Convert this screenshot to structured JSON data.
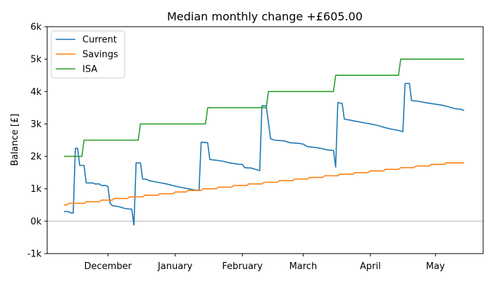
{
  "chart_data": {
    "type": "line",
    "title": "Median monthly change +£605.00",
    "xlabel": "",
    "ylabel": "Balance [£]",
    "ylim": [
      -1000,
      6000
    ],
    "yticks": [
      -1000,
      0,
      1000,
      2000,
      3000,
      4000,
      5000,
      6000
    ],
    "ytick_labels": [
      "-1k",
      "0k",
      "1k",
      "2k",
      "3k",
      "4k",
      "5k",
      "6k"
    ],
    "xlim": [
      "2022-11-03",
      "2023-05-23"
    ],
    "xticks": [
      "2022-12-01",
      "2023-01-01",
      "2023-02-01",
      "2023-03-01",
      "2023-04-01",
      "2023-05-01"
    ],
    "xtick_labels": [
      "December",
      "January",
      "February",
      "March",
      "April",
      "May"
    ],
    "grid": false,
    "zero_line": true,
    "legend": "top-left",
    "series": [
      {
        "name": "Current",
        "color": "#1f77b4",
        "points": [
          [
            "2022-11-11",
            300
          ],
          [
            "2022-11-13",
            290
          ],
          [
            "2022-11-14",
            250
          ],
          [
            "2022-11-15",
            250
          ],
          [
            "2022-11-16",
            2250
          ],
          [
            "2022-11-17",
            2250
          ],
          [
            "2022-11-18",
            1720
          ],
          [
            "2022-11-20",
            1720
          ],
          [
            "2022-11-21",
            1180
          ],
          [
            "2022-11-24",
            1180
          ],
          [
            "2022-11-25",
            1150
          ],
          [
            "2022-11-27",
            1150
          ],
          [
            "2022-11-28",
            1100
          ],
          [
            "2022-11-30",
            1100
          ],
          [
            "2022-12-01",
            1070
          ],
          [
            "2022-12-02",
            550
          ],
          [
            "2022-12-03",
            480
          ],
          [
            "2022-12-05",
            460
          ],
          [
            "2022-12-07",
            430
          ],
          [
            "2022-12-09",
            390
          ],
          [
            "2022-12-12",
            370
          ],
          [
            "2022-12-13",
            -120
          ],
          [
            "2022-12-14",
            1800
          ],
          [
            "2022-12-16",
            1800
          ],
          [
            "2022-12-17",
            1300
          ],
          [
            "2022-12-19",
            1290
          ],
          [
            "2022-12-20",
            1250
          ],
          [
            "2022-12-24",
            1200
          ],
          [
            "2022-12-28",
            1150
          ],
          [
            "2023-01-01",
            1080
          ],
          [
            "2023-01-04",
            1040
          ],
          [
            "2023-01-07",
            1000
          ],
          [
            "2023-01-10",
            960
          ],
          [
            "2023-01-12",
            950
          ],
          [
            "2023-01-13",
            2440
          ],
          [
            "2023-01-16",
            2420
          ],
          [
            "2023-01-17",
            1900
          ],
          [
            "2023-01-20",
            1880
          ],
          [
            "2023-01-23",
            1850
          ],
          [
            "2023-01-26",
            1800
          ],
          [
            "2023-01-30",
            1760
          ],
          [
            "2023-02-01",
            1750
          ],
          [
            "2023-02-02",
            1650
          ],
          [
            "2023-02-05",
            1640
          ],
          [
            "2023-02-07",
            1600
          ],
          [
            "2023-02-09",
            1560
          ],
          [
            "2023-02-10",
            3560
          ],
          [
            "2023-02-12",
            3560
          ],
          [
            "2023-02-14",
            2540
          ],
          [
            "2023-02-16",
            2500
          ],
          [
            "2023-02-20",
            2480
          ],
          [
            "2023-02-23",
            2420
          ],
          [
            "2023-02-27",
            2400
          ],
          [
            "2023-03-01",
            2380
          ],
          [
            "2023-03-03",
            2300
          ],
          [
            "2023-03-06",
            2280
          ],
          [
            "2023-03-09",
            2250
          ],
          [
            "2023-03-12",
            2200
          ],
          [
            "2023-03-15",
            2180
          ],
          [
            "2023-03-16",
            1670
          ],
          [
            "2023-03-17",
            3660
          ],
          [
            "2023-03-19",
            3630
          ],
          [
            "2023-03-20",
            3150
          ],
          [
            "2023-03-24",
            3100
          ],
          [
            "2023-03-28",
            3050
          ],
          [
            "2023-04-01",
            3000
          ],
          [
            "2023-04-04",
            2960
          ],
          [
            "2023-04-07",
            2900
          ],
          [
            "2023-04-10",
            2850
          ],
          [
            "2023-04-14",
            2800
          ],
          [
            "2023-04-16",
            2760
          ],
          [
            "2023-04-17",
            4250
          ],
          [
            "2023-04-19",
            4250
          ],
          [
            "2023-04-20",
            3720
          ],
          [
            "2023-04-23",
            3700
          ],
          [
            "2023-04-27",
            3650
          ],
          [
            "2023-04-30",
            3620
          ],
          [
            "2023-05-04",
            3580
          ],
          [
            "2023-05-07",
            3530
          ],
          [
            "2023-05-10",
            3470
          ],
          [
            "2023-05-13",
            3450
          ],
          [
            "2023-05-14",
            3420
          ]
        ]
      },
      {
        "name": "Savings",
        "color": "#ff7f0e",
        "points": [
          [
            "2022-11-11",
            500
          ],
          [
            "2022-11-12",
            500
          ],
          [
            "2022-11-13",
            550
          ],
          [
            "2022-11-20",
            550
          ],
          [
            "2022-11-21",
            600
          ],
          [
            "2022-11-27",
            600
          ],
          [
            "2022-11-28",
            650
          ],
          [
            "2022-12-03",
            650
          ],
          [
            "2022-12-04",
            700
          ],
          [
            "2022-12-10",
            700
          ],
          [
            "2022-12-11",
            750
          ],
          [
            "2022-12-17",
            750
          ],
          [
            "2022-12-18",
            800
          ],
          [
            "2022-12-24",
            800
          ],
          [
            "2022-12-25",
            850
          ],
          [
            "2022-12-31",
            850
          ],
          [
            "2023-01-01",
            900
          ],
          [
            "2023-01-06",
            900
          ],
          [
            "2023-01-07",
            950
          ],
          [
            "2023-01-13",
            950
          ],
          [
            "2023-01-14",
            1000
          ],
          [
            "2023-01-20",
            1000
          ],
          [
            "2023-01-21",
            1050
          ],
          [
            "2023-01-27",
            1050
          ],
          [
            "2023-01-28",
            1100
          ],
          [
            "2023-02-03",
            1100
          ],
          [
            "2023-02-04",
            1150
          ],
          [
            "2023-02-10",
            1150
          ],
          [
            "2023-02-11",
            1200
          ],
          [
            "2023-02-17",
            1200
          ],
          [
            "2023-02-18",
            1250
          ],
          [
            "2023-02-24",
            1250
          ],
          [
            "2023-02-25",
            1300
          ],
          [
            "2023-03-03",
            1300
          ],
          [
            "2023-03-04",
            1350
          ],
          [
            "2023-03-10",
            1350
          ],
          [
            "2023-03-11",
            1400
          ],
          [
            "2023-03-17",
            1400
          ],
          [
            "2023-03-18",
            1450
          ],
          [
            "2023-03-24",
            1450
          ],
          [
            "2023-03-25",
            1500
          ],
          [
            "2023-03-31",
            1500
          ],
          [
            "2023-04-01",
            1550
          ],
          [
            "2023-04-07",
            1550
          ],
          [
            "2023-04-08",
            1600
          ],
          [
            "2023-04-14",
            1600
          ],
          [
            "2023-04-15",
            1650
          ],
          [
            "2023-04-21",
            1650
          ],
          [
            "2023-04-22",
            1700
          ],
          [
            "2023-04-28",
            1700
          ],
          [
            "2023-04-29",
            1750
          ],
          [
            "2023-05-05",
            1750
          ],
          [
            "2023-05-06",
            1800
          ],
          [
            "2023-05-14",
            1800
          ]
        ]
      },
      {
        "name": "ISA",
        "color": "#2ca02c",
        "points": [
          [
            "2022-11-11",
            2000
          ],
          [
            "2022-11-19",
            2000
          ],
          [
            "2022-11-20",
            2500
          ],
          [
            "2022-12-15",
            2500
          ],
          [
            "2022-12-16",
            3000
          ],
          [
            "2023-01-15",
            3000
          ],
          [
            "2023-01-16",
            3500
          ],
          [
            "2023-02-12",
            3500
          ],
          [
            "2023-02-13",
            4000
          ],
          [
            "2023-03-15",
            4000
          ],
          [
            "2023-03-16",
            4500
          ],
          [
            "2023-04-14",
            4500
          ],
          [
            "2023-04-15",
            5000
          ],
          [
            "2023-05-14",
            5000
          ]
        ]
      }
    ]
  }
}
